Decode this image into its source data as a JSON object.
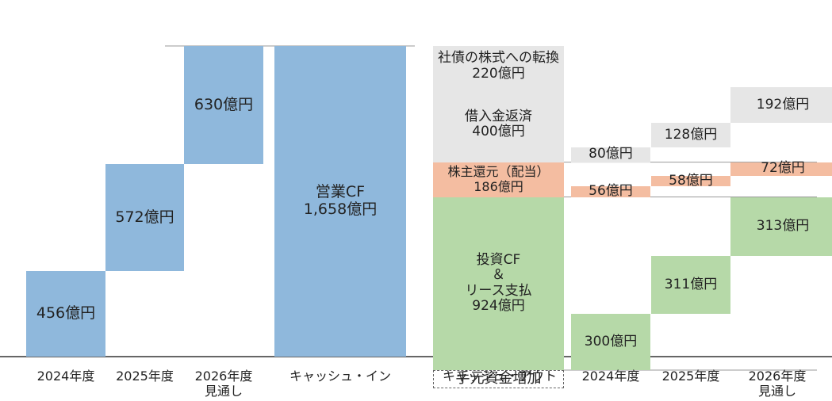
{
  "chart_data": [
    {
      "type": "bar",
      "categories": [
        "2024年度",
        "2025年度",
        "2026年度\n見通し",
        "キャッシュ・イン"
      ],
      "series": [
        {
          "values": [
            456,
            572,
            630,
            1658
          ]
        }
      ],
      "labels": [
        "456億円",
        "572億円",
        "630億円",
        "営業CF\n1,658億円"
      ],
      "color": "#8fb8dc",
      "stacked_waterfall": true,
      "ylim": [
        0,
        1658
      ]
    },
    {
      "type": "bar",
      "categories": [
        "キャッシュ・アウト",
        "2024年度",
        "2025年度",
        "2026年度\n見通し"
      ],
      "series": [
        {
          "segment": "投資CF＆リース支払",
          "values": [
            924,
            300,
            311,
            313
          ],
          "labels": [
            "投資CF\n＆\nリース支払\n924億円",
            "300億円",
            "311億円",
            "313億円"
          ],
          "color": "#b6d9a8"
        },
        {
          "segment": "株主還元（配当）",
          "values": [
            186,
            56,
            58,
            72
          ],
          "labels": [
            "株主還元（配当）\n186億円",
            "56億円",
            "58億円",
            "72億円"
          ],
          "color": "#f4bda1"
        },
        {
          "segment": "借入金返済",
          "values": [
            400,
            80,
            128,
            192
          ],
          "labels": [
            "借入金返済\n400億円",
            "80億円",
            "128億円",
            "192億円"
          ],
          "color": "#e6e6e6"
        },
        {
          "segment": "社債の株式への転換",
          "values": [
            220,
            null,
            null,
            null
          ],
          "labels": [
            "社債の株式への転換\n220億円",
            "",
            "",
            ""
          ],
          "color": "#e6e6e6"
        }
      ],
      "extra_labels": [
        "手元資金増加"
      ]
    }
  ],
  "colors": {
    "inflow": "#8fb8dc",
    "investment": "#b6d9a8",
    "dividend": "#f4bda1",
    "repayment": "#e6e6e6"
  }
}
